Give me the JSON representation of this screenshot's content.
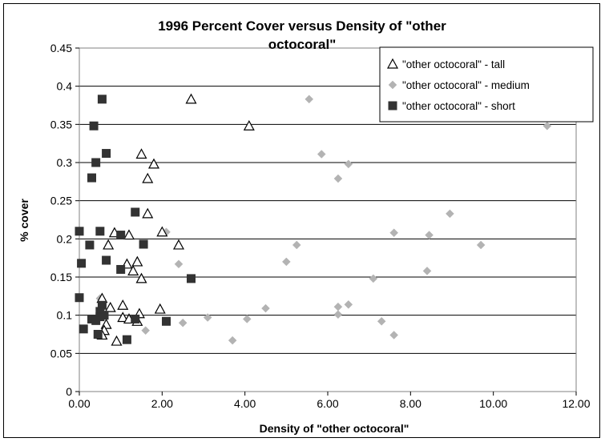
{
  "chart_data": {
    "type": "scatter",
    "title_lines": [
      "1996 Percent Cover versus Density of \"other",
      "octocoral\""
    ],
    "xlabel": "Density of \"other octocoral\"",
    "ylabel": "% cover",
    "xlim": [
      0,
      12
    ],
    "ylim": [
      0,
      0.45
    ],
    "x_ticks": [
      0,
      2,
      4,
      6,
      8,
      10,
      12
    ],
    "x_tick_labels": [
      "0.00",
      "2.00",
      "4.00",
      "6.00",
      "8.00",
      "10.00",
      "12.00"
    ],
    "y_ticks": [
      0,
      0.05,
      0.1,
      0.15,
      0.2,
      0.25,
      0.3,
      0.35,
      0.4,
      0.45
    ],
    "y_tick_labels": [
      "0",
      "0.05",
      "0.1",
      "0.15",
      "0.2",
      "0.25",
      "0.3",
      "0.35",
      "0.4",
      "0.45"
    ],
    "grid": "horizontal",
    "legend_position": "top-right",
    "series": [
      {
        "name": "\"other octocoral\" - tall",
        "marker": "open-triangle",
        "color": "#000000",
        "points": [
          [
            2.7,
            0.383
          ],
          [
            4.1,
            0.348
          ],
          [
            1.5,
            0.311
          ],
          [
            1.8,
            0.298
          ],
          [
            1.65,
            0.279
          ],
          [
            1.65,
            0.233
          ],
          [
            0.85,
            0.208
          ],
          [
            2.0,
            0.209
          ],
          [
            1.2,
            0.205
          ],
          [
            2.4,
            0.192
          ],
          [
            0.7,
            0.192
          ],
          [
            1.15,
            0.167
          ],
          [
            1.4,
            0.17
          ],
          [
            1.3,
            0.158
          ],
          [
            1.5,
            0.148
          ],
          [
            0.55,
            0.122
          ],
          [
            1.05,
            0.113
          ],
          [
            1.95,
            0.108
          ],
          [
            0.75,
            0.11
          ],
          [
            1.45,
            0.102
          ],
          [
            1.05,
            0.097
          ],
          [
            1.2,
            0.095
          ],
          [
            1.4,
            0.092
          ],
          [
            0.65,
            0.088
          ],
          [
            0.6,
            0.08
          ],
          [
            0.55,
            0.074
          ],
          [
            0.9,
            0.066
          ]
        ]
      },
      {
        "name": "\"other octocoral\" - medium",
        "marker": "diamond",
        "color": "#b3b3b3",
        "points": [
          [
            5.55,
            0.383
          ],
          [
            11.3,
            0.348
          ],
          [
            5.85,
            0.311
          ],
          [
            6.5,
            0.298
          ],
          [
            6.25,
            0.279
          ],
          [
            8.95,
            0.233
          ],
          [
            2.1,
            0.209
          ],
          [
            7.6,
            0.208
          ],
          [
            8.45,
            0.205
          ],
          [
            5.25,
            0.192
          ],
          [
            9.7,
            0.192
          ],
          [
            5.0,
            0.17
          ],
          [
            2.4,
            0.167
          ],
          [
            8.4,
            0.158
          ],
          [
            7.1,
            0.148
          ],
          [
            0.5,
            0.122
          ],
          [
            6.5,
            0.114
          ],
          [
            4.5,
            0.109
          ],
          [
            6.25,
            0.111
          ],
          [
            6.25,
            0.101
          ],
          [
            3.1,
            0.097
          ],
          [
            4.05,
            0.095
          ],
          [
            7.3,
            0.092
          ],
          [
            2.5,
            0.09
          ],
          [
            1.6,
            0.08
          ],
          [
            7.6,
            0.074
          ],
          [
            3.7,
            0.067
          ]
        ]
      },
      {
        "name": "\"other octocoral\" - short",
        "marker": "filled-square",
        "color": "#333333",
        "points": [
          [
            0.55,
            0.383
          ],
          [
            0.35,
            0.348
          ],
          [
            0.65,
            0.312
          ],
          [
            0.4,
            0.3
          ],
          [
            0.3,
            0.28
          ],
          [
            1.35,
            0.235
          ],
          [
            0.0,
            0.21
          ],
          [
            0.5,
            0.21
          ],
          [
            1.0,
            0.205
          ],
          [
            0.25,
            0.192
          ],
          [
            1.55,
            0.193
          ],
          [
            0.65,
            0.172
          ],
          [
            0.05,
            0.168
          ],
          [
            1.0,
            0.16
          ],
          [
            2.7,
            0.148
          ],
          [
            0.0,
            0.123
          ],
          [
            0.55,
            0.113
          ],
          [
            0.5,
            0.105
          ],
          [
            0.6,
            0.1
          ],
          [
            0.5,
            0.098
          ],
          [
            0.3,
            0.095
          ],
          [
            0.4,
            0.093
          ],
          [
            1.35,
            0.095
          ],
          [
            2.1,
            0.092
          ],
          [
            0.1,
            0.082
          ],
          [
            0.45,
            0.075
          ],
          [
            1.15,
            0.068
          ]
        ]
      }
    ]
  }
}
